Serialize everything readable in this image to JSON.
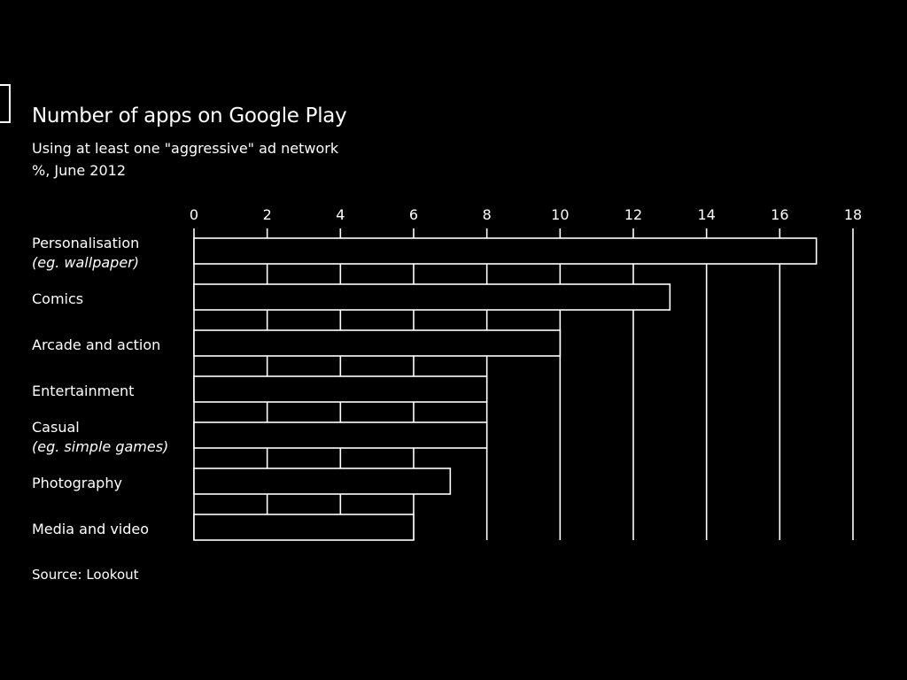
{
  "title": "Number of apps on Google Play",
  "subtitle_line1": "Using at least one \"aggressive\" ad network",
  "subtitle_line2": "%, June 2012",
  "source": "Source: Lookout",
  "colors": {
    "background": "#000000",
    "foreground": "#ffffff"
  },
  "chart_data": {
    "type": "bar",
    "orientation": "horizontal",
    "title": "Number of apps on Google Play",
    "subtitle": "Using at least one \"aggressive\" ad network — %, June 2012",
    "categories": [
      {
        "label": "Personalisation",
        "note": "(eg. wallpaper)"
      },
      {
        "label": "Comics",
        "note": ""
      },
      {
        "label": "Arcade and action",
        "note": ""
      },
      {
        "label": "Entertainment",
        "note": ""
      },
      {
        "label": "Casual",
        "note": "(eg. simple games)"
      },
      {
        "label": "Photography",
        "note": ""
      },
      {
        "label": "Media and video",
        "note": ""
      }
    ],
    "values": [
      17,
      13,
      10,
      8,
      8,
      7,
      6
    ],
    "xlim": [
      0,
      18
    ],
    "xticks": [
      0,
      2,
      4,
      6,
      8,
      10,
      12,
      14,
      16,
      18
    ],
    "axis_position": "top",
    "grid": true
  }
}
